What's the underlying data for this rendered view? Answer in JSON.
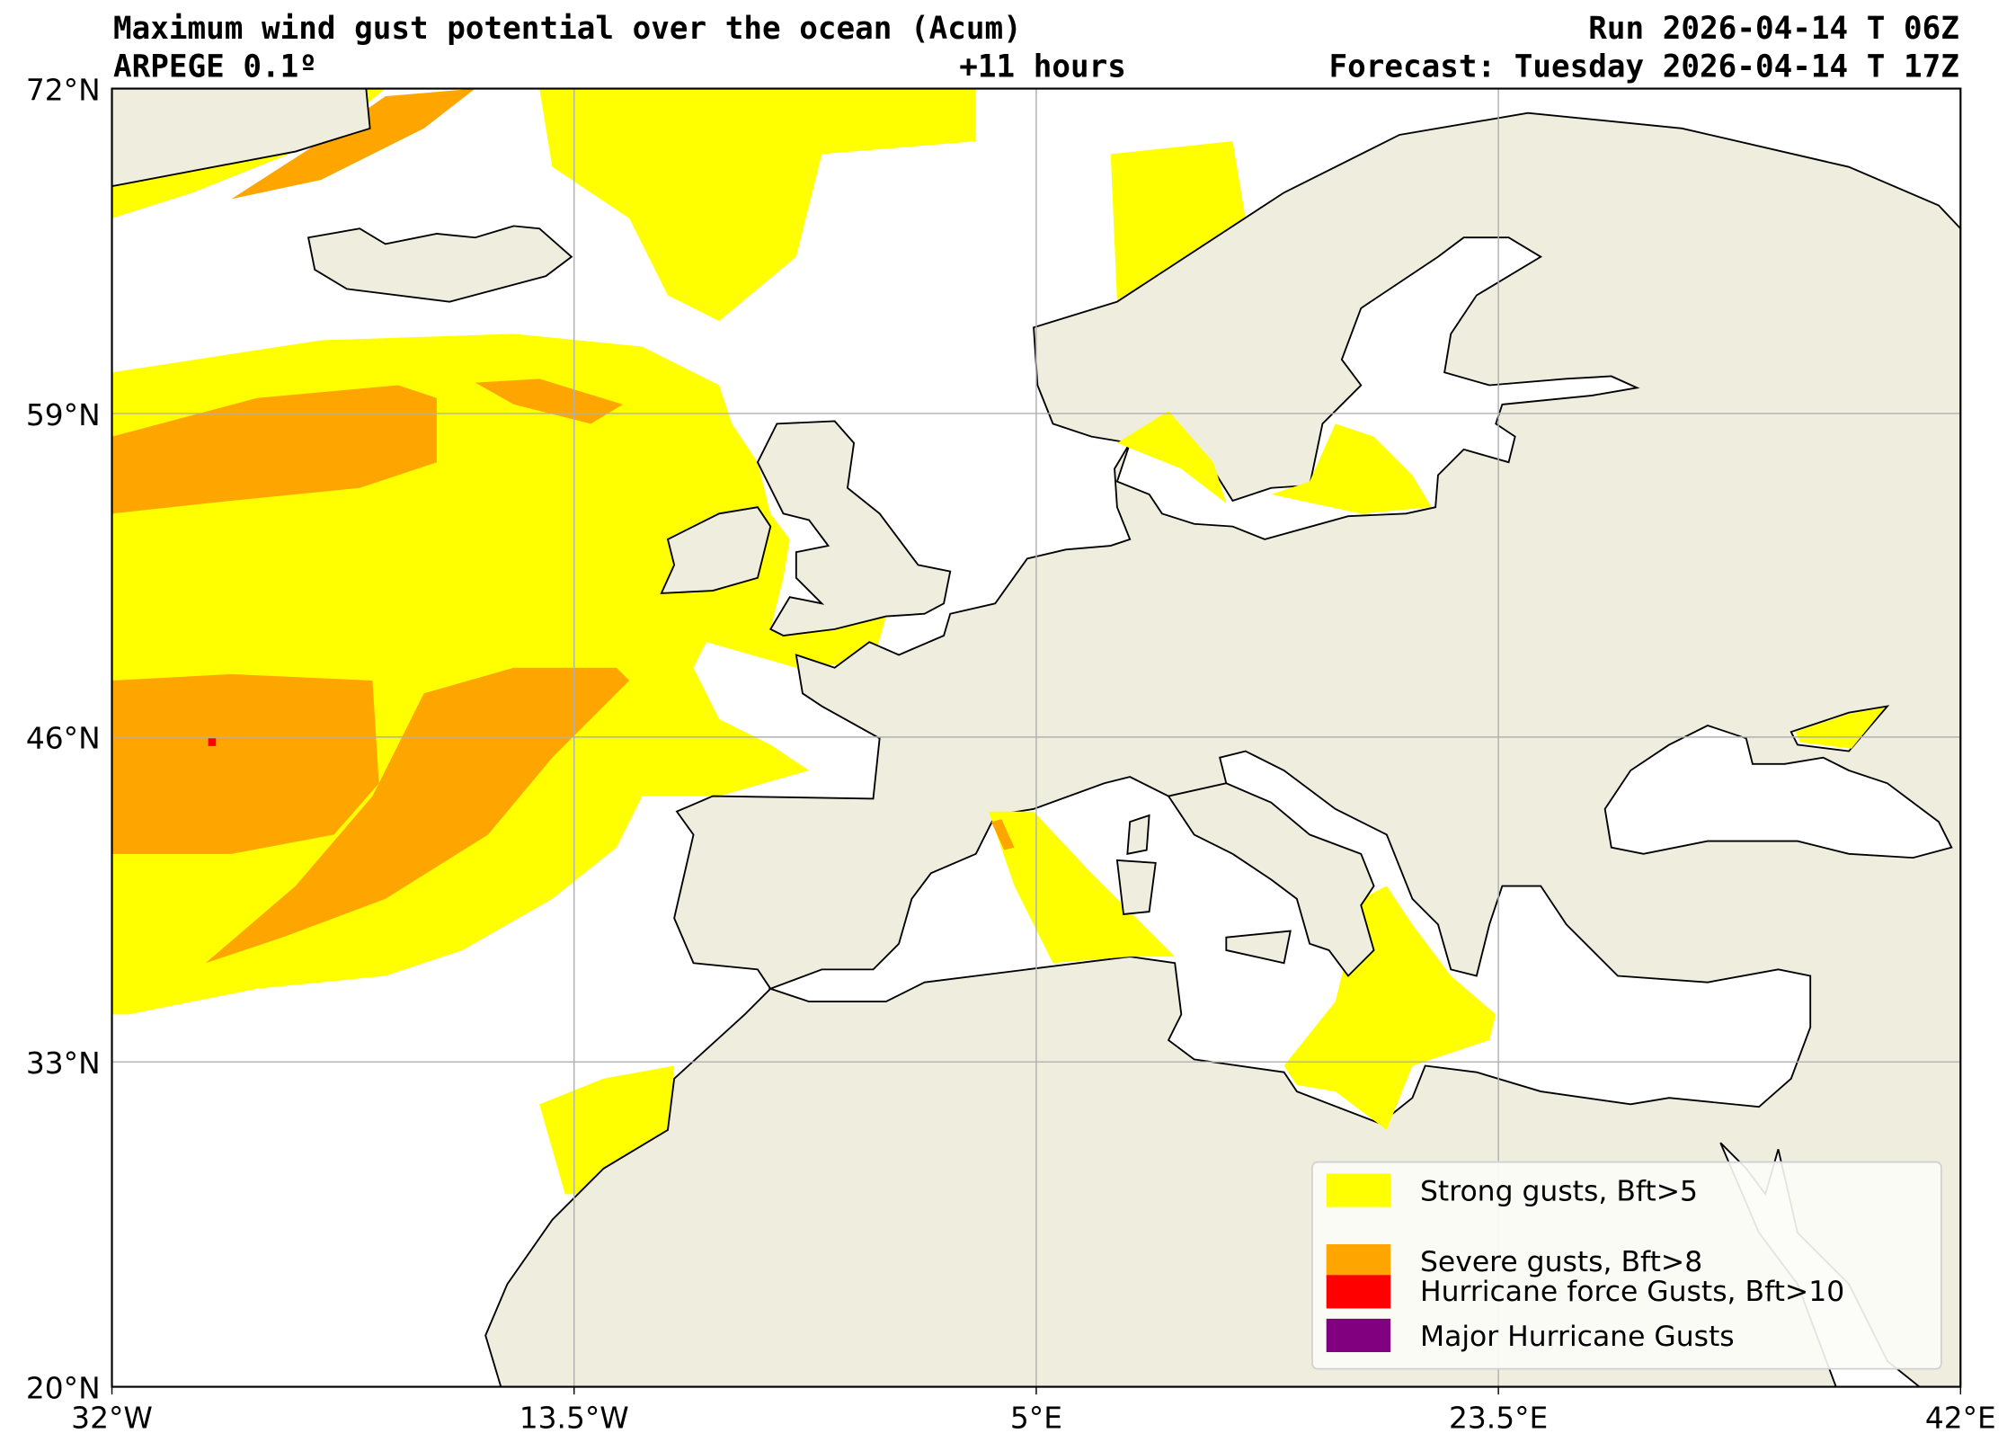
{
  "header": {
    "title": "Maximum wind gust potential over the ocean (Acum)",
    "run": "Run 2026-04-14 T 06Z",
    "model": "ARPEGE 0.1º",
    "lead": "+11 hours",
    "forecast": "Forecast: Tuesday 2026-04-14 T 17Z"
  },
  "axes": {
    "y_ticks": [
      "72°N",
      "59°N",
      "46°N",
      "33°N",
      "20°N"
    ],
    "x_ticks": [
      "32°W",
      "13.5°W",
      "5°E",
      "23.5°E",
      "42°E"
    ]
  },
  "legend": {
    "items": [
      {
        "label": "Strong gusts, Bft>5",
        "color": "#ffff00"
      },
      {
        "label": "Severe gusts, Bft>8",
        "color": "#ffa500"
      },
      {
        "label": "Hurricane force Gusts, Bft>10",
        "color": "#ff0000"
      },
      {
        "label": "Major Hurricane Gusts",
        "color": "#800080"
      }
    ]
  },
  "colors": {
    "land": "#efeddd",
    "ocean": "#ffffff"
  }
}
